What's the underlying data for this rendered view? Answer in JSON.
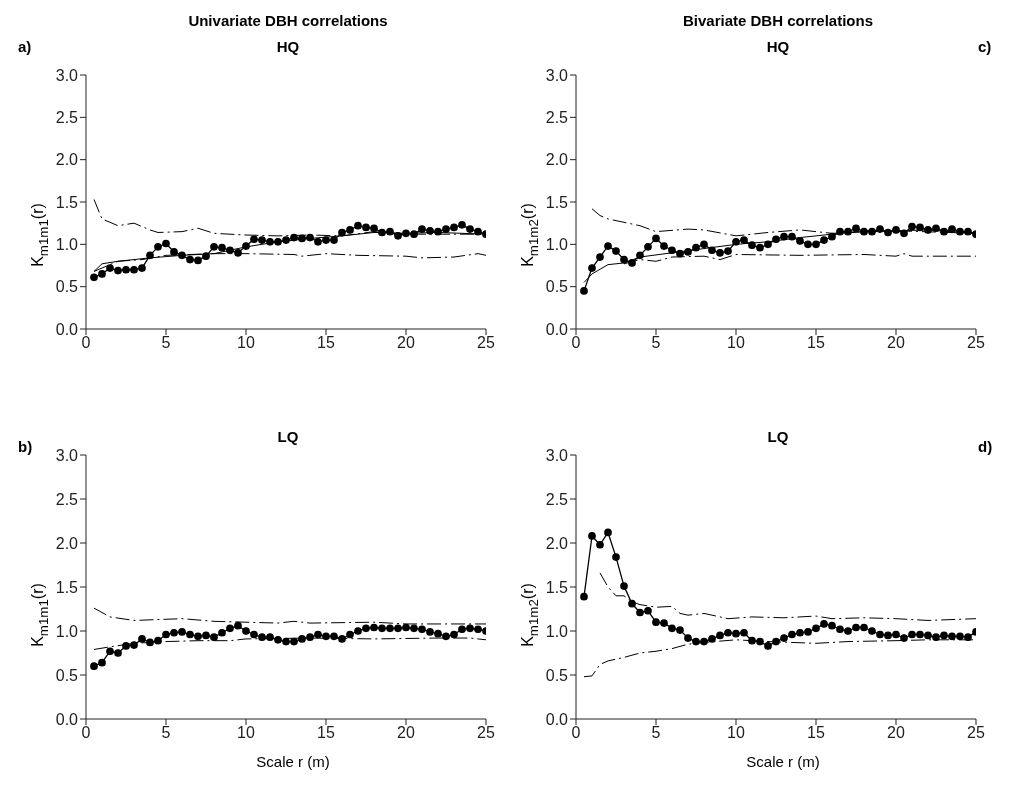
{
  "chart_data": [
    {
      "type": "line",
      "title": "Univariate DBH correlations",
      "subtitle": "HQ",
      "ylabel": "K$_{m1m1}$(r)",
      "annotations": [
        "a)"
      ],
      "xlim": [
        0,
        25
      ],
      "xticks": [
        0,
        5,
        10,
        15,
        20,
        25
      ],
      "ylim": [
        0,
        3
      ],
      "yticks": [
        {
          "value": 0,
          "label": "0.0"
        },
        {
          "value": 0.5,
          "label": "0.5"
        },
        {
          "value": 1,
          "label": "1.0"
        },
        {
          "value": 1.5,
          "label": "1.5"
        },
        {
          "value": 2,
          "label": "2.0"
        },
        {
          "value": 2.5,
          "label": "2.5"
        },
        {
          "value": 3,
          "label": "3.0"
        }
      ],
      "series": [
        {
          "color": "#000000",
          "marker": "circle",
          "line_style": "solid",
          "x": [
            0.5,
            1,
            1.5,
            2,
            2.5,
            3,
            3.5,
            4,
            4.5,
            5,
            5.5,
            6,
            6.5,
            7,
            7.5,
            8,
            8.5,
            9,
            9.5,
            10,
            10.5,
            11,
            11.5,
            12,
            12.5,
            13,
            13.5,
            14,
            14.5,
            15,
            15.5,
            16,
            16.5,
            17,
            17.5,
            18,
            18.5,
            19,
            19.5,
            20,
            20.5,
            21,
            21.5,
            22,
            22.5,
            23,
            23.5,
            24,
            24.5,
            25
          ],
          "values": [
            0.61,
            0.65,
            0.72,
            0.69,
            0.7,
            0.7,
            0.72,
            0.87,
            0.97,
            1.01,
            0.91,
            0.87,
            0.82,
            0.81,
            0.86,
            0.97,
            0.96,
            0.93,
            0.9,
            0.98,
            1.06,
            1.05,
            1.03,
            1.03,
            1.05,
            1.08,
            1.07,
            1.08,
            1.03,
            1.05,
            1.05,
            1.14,
            1.17,
            1.22,
            1.2,
            1.19,
            1.14,
            1.15,
            1.1,
            1.13,
            1.12,
            1.18,
            1.16,
            1.15,
            1.18,
            1.2,
            1.23,
            1.18,
            1.15,
            1.12
          ]
        },
        {
          "color": "#000000",
          "marker": "none",
          "line_style": "solid",
          "x": [
            0.5,
            1,
            2,
            4,
            6,
            8,
            10,
            12,
            14,
            16,
            18,
            20,
            22,
            25
          ],
          "values": [
            0.68,
            0.77,
            0.8,
            0.84,
            0.87,
            0.89,
            0.97,
            1.03,
            1.07,
            1.1,
            1.14,
            1.13,
            1.14,
            1.12
          ]
        },
        {
          "color": "#000000",
          "marker": "none",
          "line_style": "dashed",
          "x": [
            0.5,
            1,
            2,
            3,
            4,
            4.5,
            6,
            7,
            8,
            10,
            12,
            14,
            16,
            18,
            20,
            25
          ],
          "values": [
            1.53,
            1.3,
            1.22,
            1.25,
            1.17,
            1.14,
            1.15,
            1.19,
            1.13,
            1.11,
            1.1,
            1.11,
            1.1,
            1.15,
            1.12,
            1.12
          ]
        },
        {
          "color": "#000000",
          "marker": "none",
          "line_style": "dashed",
          "x": [
            0.5,
            2,
            3.5,
            5,
            8,
            10,
            13,
            13.5,
            15,
            17,
            20,
            21,
            23,
            24.5,
            25
          ],
          "values": [
            0.68,
            0.8,
            0.82,
            0.87,
            0.89,
            0.89,
            0.88,
            0.86,
            0.89,
            0.87,
            0.86,
            0.84,
            0.85,
            0.89,
            0.87
          ]
        }
      ]
    },
    {
      "type": "line",
      "title": "Bivariate DBH correlations",
      "subtitle": "HQ",
      "ylabel": "K$_{m1m2}$(r)",
      "annotations": [
        "c)"
      ],
      "xlim": [
        0,
        25
      ],
      "xticks": [
        0,
        5,
        10,
        15,
        20,
        25
      ],
      "ylim": [
        0,
        3
      ],
      "yticks": [
        {
          "value": 0,
          "label": "0.0"
        },
        {
          "value": 0.5,
          "label": "0.5"
        },
        {
          "value": 1,
          "label": "1.0"
        },
        {
          "value": 1.5,
          "label": "1.5"
        },
        {
          "value": 2,
          "label": "2.0"
        },
        {
          "value": 2.5,
          "label": "2.5"
        },
        {
          "value": 3,
          "label": "3.0"
        }
      ],
      "series": [
        {
          "color": "#000000",
          "marker": "circle",
          "line_style": "solid",
          "x": [
            0.5,
            1,
            1.5,
            2,
            2.5,
            3,
            3.5,
            4,
            4.5,
            5,
            5.5,
            6,
            6.5,
            7,
            7.5,
            8,
            8.5,
            9,
            9.5,
            10,
            10.5,
            11,
            11.5,
            12,
            12.5,
            13,
            13.5,
            14,
            14.5,
            15,
            15.5,
            16,
            16.5,
            17,
            17.5,
            18,
            18.5,
            19,
            19.5,
            20,
            20.5,
            21,
            21.5,
            22,
            22.5,
            23,
            23.5,
            24,
            24.5,
            25
          ],
          "values": [
            0.45,
            0.72,
            0.85,
            0.98,
            0.92,
            0.82,
            0.78,
            0.87,
            0.97,
            1.07,
            0.98,
            0.93,
            0.89,
            0.91,
            0.96,
            1.0,
            0.93,
            0.9,
            0.92,
            1.03,
            1.05,
            0.99,
            0.96,
            1.0,
            1.06,
            1.09,
            1.09,
            1.04,
            1.0,
            1.0,
            1.05,
            1.09,
            1.15,
            1.15,
            1.19,
            1.15,
            1.15,
            1.18,
            1.14,
            1.17,
            1.13,
            1.21,
            1.2,
            1.17,
            1.19,
            1.15,
            1.18,
            1.15,
            1.15,
            1.12
          ]
        },
        {
          "color": "#000000",
          "marker": "none",
          "line_style": "solid",
          "x": [
            0.5,
            1,
            2,
            3,
            4,
            6,
            8,
            10,
            12,
            14,
            16,
            18,
            20,
            22,
            25
          ],
          "values": [
            0.55,
            0.65,
            0.76,
            0.78,
            0.85,
            0.9,
            0.95,
            1.0,
            1.03,
            1.08,
            1.12,
            1.16,
            1.16,
            1.17,
            1.13
          ]
        },
        {
          "color": "#000000",
          "marker": "none",
          "line_style": "dashed",
          "x": [
            1,
            1.5,
            2,
            3,
            4,
            5,
            7,
            8,
            10,
            12,
            14,
            16,
            20,
            25
          ],
          "values": [
            1.42,
            1.34,
            1.3,
            1.26,
            1.22,
            1.15,
            1.18,
            1.17,
            1.1,
            1.14,
            1.17,
            1.13,
            1.16,
            1.13
          ]
        },
        {
          "color": "#000000",
          "marker": "none",
          "line_style": "dashed",
          "x": [
            3,
            4,
            5,
            6,
            8,
            9,
            10,
            14,
            18,
            20,
            20.5,
            21,
            25
          ],
          "values": [
            0.77,
            0.82,
            0.8,
            0.85,
            0.86,
            0.82,
            0.88,
            0.87,
            0.88,
            0.86,
            0.89,
            0.86,
            0.86
          ]
        }
      ]
    },
    {
      "type": "line",
      "title": "LQ",
      "xlabel": "Scale r (m)",
      "ylabel": "K$_{m1m1}$(r)",
      "annotations": [
        "b)"
      ],
      "xlim": [
        0,
        25
      ],
      "xticks": [
        0,
        5,
        10,
        15,
        20,
        25
      ],
      "ylim": [
        0,
        3
      ],
      "yticks": [
        {
          "value": 0,
          "label": "0.0"
        },
        {
          "value": 0.5,
          "label": "0.5"
        },
        {
          "value": 1,
          "label": "1.0"
        },
        {
          "value": 1.5,
          "label": "1.5"
        },
        {
          "value": 2,
          "label": "2.0"
        },
        {
          "value": 2.5,
          "label": "2.5"
        },
        {
          "value": 3,
          "label": "3.0"
        }
      ],
      "series": [
        {
          "color": "#000000",
          "marker": "circle",
          "line_style": "solid",
          "x": [
            0.5,
            1,
            1.5,
            2,
            2.5,
            3,
            3.5,
            4,
            4.5,
            5,
            5.5,
            6,
            6.5,
            7,
            7.5,
            8,
            8.5,
            9,
            9.5,
            10,
            10.5,
            11,
            11.5,
            12,
            12.5,
            13,
            13.5,
            14,
            14.5,
            15,
            15.5,
            16,
            16.5,
            17,
            17.5,
            18,
            18.5,
            19,
            19.5,
            20,
            20.5,
            21,
            21.5,
            22,
            22.5,
            23,
            23.5,
            24,
            24.5,
            25
          ],
          "values": [
            0.6,
            0.64,
            0.77,
            0.75,
            0.83,
            0.84,
            0.91,
            0.87,
            0.89,
            0.96,
            0.98,
            0.99,
            0.96,
            0.94,
            0.95,
            0.93,
            0.98,
            1.03,
            1.06,
            1.0,
            0.96,
            0.93,
            0.93,
            0.9,
            0.88,
            0.88,
            0.91,
            0.93,
            0.96,
            0.94,
            0.94,
            0.91,
            0.96,
            1.0,
            1.03,
            1.04,
            1.03,
            1.03,
            1.03,
            1.04,
            1.03,
            1.02,
            0.99,
            0.97,
            0.94,
            0.96,
            1.02,
            1.03,
            1.02,
            1.0
          ]
        },
        {
          "color": "#000000",
          "marker": "none",
          "line_style": "dashed",
          "x": [
            0.5,
            1.5,
            3,
            6,
            8,
            10,
            12,
            13,
            14,
            18,
            20,
            22,
            25
          ],
          "values": [
            1.26,
            1.16,
            1.12,
            1.14,
            1.11,
            1.1,
            1.09,
            1.11,
            1.09,
            1.1,
            1.08,
            1.08,
            1.08
          ]
        },
        {
          "color": "#000000",
          "marker": "none",
          "line_style": "dashed",
          "x": [
            0.5,
            1.5,
            3,
            5,
            7,
            9,
            10,
            14,
            18,
            22,
            24,
            25
          ],
          "values": [
            0.79,
            0.82,
            0.86,
            0.88,
            0.89,
            0.89,
            0.91,
            0.92,
            0.91,
            0.92,
            0.92,
            0.9
          ]
        }
      ]
    },
    {
      "type": "line",
      "title": "LQ",
      "xlabel": "Scale r (m)",
      "ylabel": "K$_{m1m2}$(r)",
      "annotations": [
        "d)"
      ],
      "xlim": [
        0,
        25
      ],
      "xticks": [
        0,
        5,
        10,
        15,
        20,
        25
      ],
      "ylim": [
        0,
        3
      ],
      "yticks": [
        {
          "value": 0,
          "label": "0.0"
        },
        {
          "value": 0.5,
          "label": "0.5"
        },
        {
          "value": 1,
          "label": "1.0"
        },
        {
          "value": 1.5,
          "label": "1.5"
        },
        {
          "value": 2,
          "label": "2.0"
        },
        {
          "value": 2.5,
          "label": "2.5"
        },
        {
          "value": 3,
          "label": "3.0"
        }
      ],
      "series": [
        {
          "color": "#000000",
          "marker": "circle",
          "line_style": "solid",
          "x": [
            0.5,
            1,
            1.5,
            2,
            2.5,
            3,
            3.5,
            4,
            4.5,
            5,
            5.5,
            6,
            6.5,
            7,
            7.5,
            8,
            8.5,
            9,
            9.5,
            10,
            10.5,
            11,
            11.5,
            12,
            12.5,
            13,
            13.5,
            14,
            14.5,
            15,
            15.5,
            16,
            16.5,
            17,
            17.5,
            18,
            18.5,
            19,
            19.5,
            20,
            20.5,
            21,
            21.5,
            22,
            22.5,
            23,
            23.5,
            24,
            24.5,
            25
          ],
          "values": [
            1.39,
            2.08,
            1.98,
            2.12,
            1.84,
            1.51,
            1.31,
            1.21,
            1.23,
            1.1,
            1.09,
            1.03,
            1.01,
            0.92,
            0.88,
            0.88,
            0.91,
            0.95,
            0.98,
            0.97,
            0.98,
            0.89,
            0.88,
            0.83,
            0.88,
            0.92,
            0.96,
            0.98,
            0.99,
            1.03,
            1.08,
            1.06,
            1.02,
            1.0,
            1.04,
            1.04,
            1.0,
            0.96,
            0.95,
            0.96,
            0.92,
            0.96,
            0.96,
            0.95,
            0.93,
            0.95,
            0.94,
            0.94,
            0.93,
            0.99
          ]
        },
        {
          "color": "#000000",
          "marker": "none",
          "line_style": "dashed",
          "x": [
            1.5,
            2,
            2.5,
            3,
            3.5,
            4,
            5,
            6,
            6.5,
            7,
            8,
            9.5,
            11,
            13,
            15,
            16,
            18,
            20,
            22,
            25
          ],
          "values": [
            1.66,
            1.5,
            1.4,
            1.4,
            1.33,
            1.3,
            1.27,
            1.28,
            1.2,
            1.18,
            1.2,
            1.14,
            1.16,
            1.15,
            1.17,
            1.14,
            1.15,
            1.14,
            1.12,
            1.14
          ]
        },
        {
          "color": "#000000",
          "marker": "none",
          "line_style": "dashed",
          "x": [
            0.5,
            1,
            1.5,
            2,
            3,
            4,
            5,
            6,
            7,
            8,
            10,
            12,
            15,
            17,
            20,
            22,
            25
          ],
          "values": [
            0.48,
            0.49,
            0.62,
            0.66,
            0.7,
            0.75,
            0.77,
            0.8,
            0.85,
            0.87,
            0.9,
            0.88,
            0.86,
            0.88,
            0.89,
            0.9,
            0.9
          ]
        }
      ]
    }
  ]
}
